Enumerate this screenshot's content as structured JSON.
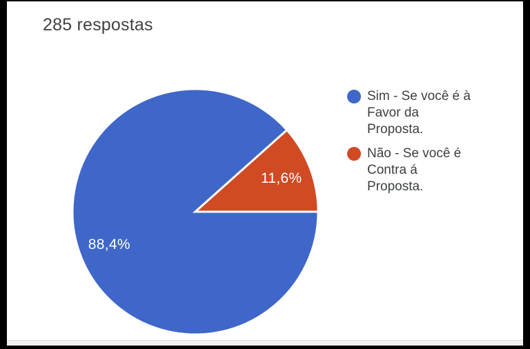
{
  "header": {
    "title": "285 respostas"
  },
  "chart_data": {
    "type": "pie",
    "title": "285 respostas",
    "responses_total": 285,
    "start_angle_deg": 90,
    "direction": "clockwise",
    "legend_position": "right",
    "label_color": "#ffffff",
    "separator_color": "#ffffff",
    "slices": [
      {
        "label": "Sim - Se você é à Favor da Proposta.",
        "value_pct": 88.4,
        "display": "88,4%",
        "color": "#3f67c9"
      },
      {
        "label": "Não - Se você é Contra á Proposta.",
        "value_pct": 11.6,
        "display": "11,6%",
        "color": "#d04a23"
      }
    ]
  },
  "legend": {
    "items": [
      {
        "color": "#3f67c9",
        "lines": [
          "Sim - Se você é à",
          "Favor da",
          "Proposta."
        ]
      },
      {
        "color": "#d04a23",
        "lines": [
          "Não - Se você é",
          "Contra á",
          "Proposta."
        ]
      }
    ]
  },
  "frame": {
    "letterbox_color": "#000000",
    "card_background": "#ffffff",
    "footer_strip_color": "#f1f1f2",
    "footer_line_color": "#d8dadb",
    "title_color": "#424242",
    "legend_text_color": "#3c4043"
  }
}
